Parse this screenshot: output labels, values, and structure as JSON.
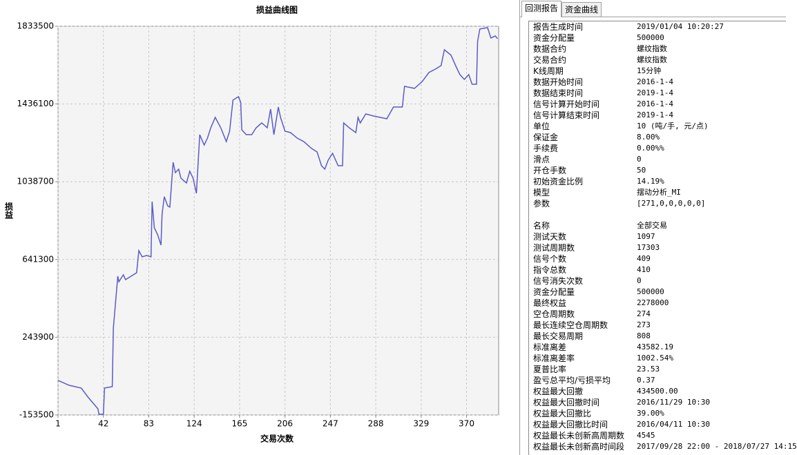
{
  "chart_data": {
    "type": "line",
    "title": "损益曲线图",
    "y_label": "损益",
    "x_label": "交易次数",
    "xlim": [
      1,
      399
    ],
    "xticks": [
      1,
      42,
      83,
      124,
      165,
      206,
      247,
      288,
      329,
      370
    ],
    "ylim": [
      -153500,
      1833500
    ],
    "yticks": [
      -153500,
      243900,
      641300,
      1038700,
      1436100,
      1833500
    ],
    "grid": true,
    "x": [
      1,
      11,
      22,
      28,
      37,
      38,
      42,
      43,
      50,
      51,
      55,
      56,
      60,
      62,
      67,
      72,
      74,
      77,
      81,
      85,
      86,
      88,
      91,
      94,
      95,
      97,
      100,
      102,
      105,
      107,
      110,
      112,
      117,
      120,
      123,
      126,
      129,
      133,
      136,
      139,
      143,
      148,
      153,
      156,
      159,
      164,
      166,
      167,
      171,
      176,
      180,
      185,
      190,
      193,
      196,
      200,
      202,
      206,
      211,
      217,
      223,
      230,
      235,
      239,
      242,
      245,
      249,
      254,
      258,
      259,
      264,
      270,
      272,
      274,
      279,
      286,
      292,
      298,
      304,
      312,
      314,
      323,
      330,
      336,
      342,
      347,
      350,
      356,
      361,
      364,
      368,
      372,
      375,
      379,
      380,
      382,
      389,
      392,
      396,
      398
    ],
    "series": [
      {
        "name": "损益",
        "color": "#5a5ac8",
        "values": [
          23000,
          -1750,
          -15900,
          -61700,
          -121700,
          -150000,
          -150000,
          -15900,
          -8600,
          291000,
          555800,
          527600,
          562900,
          538200,
          555800,
          573500,
          686400,
          654700,
          661800,
          654700,
          937000,
          803000,
          767500,
          714600,
          873500,
          962000,
          916000,
          909000,
          1138200,
          1085300,
          1102900,
          1057000,
          1032300,
          1092300,
          1057000,
          979400,
          1279300,
          1226400,
          1261700,
          1314600,
          1367600,
          1314600,
          1244000,
          1297000,
          1455800,
          1473500,
          1445200,
          1304000,
          1279300,
          1279300,
          1314600,
          1339300,
          1314600,
          1409900,
          1279300,
          1420500,
          1367600,
          1297000,
          1290000,
          1261700,
          1244000,
          1208700,
          1191000,
          1120400,
          1102900,
          1148700,
          1184000,
          1120400,
          1120400,
          1339300,
          1314600,
          1290000,
          1367600,
          1339300,
          1385200,
          1374600,
          1367600,
          1360500,
          1420500,
          1420500,
          1526400,
          1515800,
          1551000,
          1597000,
          1614600,
          1632300,
          1713500,
          1685300,
          1621700,
          1586400,
          1561700,
          1586400,
          1537000,
          1537000,
          1755700,
          1819200,
          1826300,
          1773300,
          1783900,
          1769800
        ]
      }
    ]
  },
  "tabs": [
    "回测报告",
    "资金曲线"
  ],
  "report": {
    "groups": [
      [
        [
          "报告生成时间",
          "2019/01/04 10:20:27"
        ],
        [
          "资金分配量",
          "500000"
        ],
        [
          "数据合约",
          "螺纹指数"
        ],
        [
          "交易合约",
          "螺纹指数"
        ],
        [
          "K线周期",
          "15分钟"
        ],
        [
          "数据开始时间",
          "2016-1-4"
        ],
        [
          "数据结束时间",
          "2019-1-4"
        ],
        [
          "信号计算开始时间",
          "2016-1-4"
        ],
        [
          "信号计算结束时间",
          "2019-1-4"
        ],
        [
          "单位",
          "10 (吨/手, 元/点)"
        ],
        [
          "保证金",
          "8.00%"
        ],
        [
          "手续费",
          "0.00%%"
        ],
        [
          "滑点",
          "0"
        ],
        [
          "开仓手数",
          "50"
        ],
        [
          "初始资金比例",
          "14.19%"
        ],
        [
          "模型",
          "摆动分析_MI"
        ],
        [
          "参数",
          "[271,0,0,0,0,0]"
        ]
      ],
      [
        [
          "名称",
          "全部交易"
        ],
        [
          "测试天数",
          "1097"
        ],
        [
          "测试周期数",
          "17303"
        ],
        [
          "信号个数",
          "409"
        ],
        [
          "指令总数",
          "410"
        ],
        [
          "信号消失次数",
          "0"
        ],
        [
          "资金分配量",
          "500000"
        ],
        [
          "最终权益",
          "2278000"
        ],
        [
          "空仓周期数",
          "274"
        ],
        [
          "最长连续空仓周期数",
          "273"
        ],
        [
          "最长交易周期",
          "808"
        ],
        [
          "标准离差",
          "43582.19"
        ],
        [
          "标准离差率",
          "1002.54%"
        ],
        [
          "夏普比率",
          "23.53"
        ],
        [
          "盈亏总平均/亏损平均",
          "0.37"
        ],
        [
          "权益最大回撤",
          "434500.00"
        ],
        [
          "权益最大回撤时间",
          "2016/11/29 10:30"
        ],
        [
          "权益最大回撤比",
          "39.00%"
        ],
        [
          "权益最大回撤比时间",
          "2016/04/11 10:30"
        ],
        [
          "权益最长未创新高周期数",
          "4545"
        ],
        [
          "权益最长未创新高时间段",
          "2017/09/28 22:00 - 2018/07/27 14:15"
        ]
      ]
    ]
  }
}
